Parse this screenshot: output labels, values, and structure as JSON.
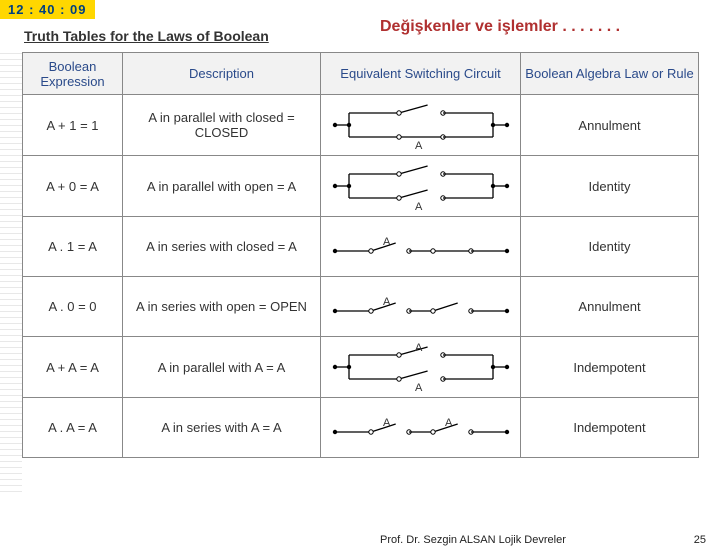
{
  "timer": "12 : 40 : 09",
  "left_title": "Truth Tables for the Laws of Boolean",
  "main_title": "Değişkenler ve işlemler . . . . . . .",
  "columns": [
    "Boolean Expression",
    "Description",
    "Equivalent Switching Circuit",
    "Boolean Algebra Law or Rule"
  ],
  "rows": [
    {
      "expr": "A + 1 = 1",
      "desc": "A in parallel with closed = CLOSED",
      "law": "Annulment",
      "circuit": "par_closed"
    },
    {
      "expr": "A + 0 = A",
      "desc": "A in parallel with open = A",
      "law": "Identity",
      "circuit": "par_open"
    },
    {
      "expr": "A . 1 = A",
      "desc": "A in series with closed = A",
      "law": "Identity",
      "circuit": "ser_closed"
    },
    {
      "expr": "A . 0 = 0",
      "desc": "A in series with open = OPEN",
      "law": "Annulment",
      "circuit": "ser_open"
    },
    {
      "expr": "A + A = A",
      "desc": "A in parallel with A = A",
      "law": "Indempotent",
      "circuit": "par_A"
    },
    {
      "expr": "A . A = A",
      "desc": "A in series with A = A",
      "law": "Indempotent",
      "circuit": "ser_A"
    }
  ],
  "footer_author": "Prof. Dr. Sezgin ALSAN   Lojik Devreler",
  "footer_page": "25",
  "svg": {
    "stroke": "#000000",
    "stroke_w": 1.3,
    "dot_r": 2.2,
    "font": "11px Arial"
  }
}
